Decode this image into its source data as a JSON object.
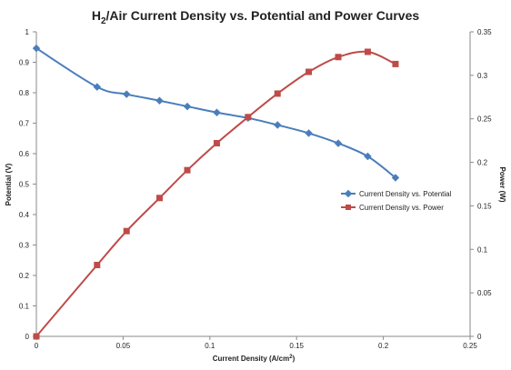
{
  "chart_data": {
    "type": "line",
    "title": {
      "prefix": "H",
      "subscript": "2",
      "rest": "/Air Current Density vs. Potential and Power Curves"
    },
    "xlabel": {
      "main": "Current Density (A/cm",
      "superscript": "2",
      "end": ")"
    },
    "ylabel_left": "Potential (V)",
    "ylabel_right": "Power (W)",
    "xlim": [
      0,
      0.25
    ],
    "ylim_left": [
      0,
      1
    ],
    "ylim_right": [
      0,
      0.35
    ],
    "x_ticks": [
      "0",
      "0.05",
      "0.1",
      "0.15",
      "0.2",
      "0.25"
    ],
    "y_left_ticks": [
      "0",
      "0.1",
      "0.2",
      "0.3",
      "0.4",
      "0.5",
      "0.6",
      "0.7",
      "0.8",
      "0.9",
      "1"
    ],
    "y_right_ticks": [
      "0",
      "0.05",
      "0.1",
      "0.15",
      "0.2",
      "0.25",
      "0.3",
      "0.35"
    ],
    "grid": false,
    "legend_position": "right",
    "series": [
      {
        "name": "Current Density vs. Potential",
        "axis": "left",
        "color": "#4a7ebb",
        "marker": "diamond",
        "x": [
          0,
          0.035,
          0.052,
          0.071,
          0.087,
          0.104,
          0.122,
          0.139,
          0.157,
          0.174,
          0.191,
          0.207
        ],
        "y": [
          0.946,
          0.819,
          0.795,
          0.774,
          0.755,
          0.735,
          0.717,
          0.694,
          0.667,
          0.634,
          0.591,
          0.521
        ]
      },
      {
        "name": "Current Density vs. Power",
        "axis": "right",
        "color": "#be4b48",
        "marker": "square",
        "x": [
          0,
          0.035,
          0.052,
          0.071,
          0.087,
          0.104,
          0.122,
          0.139,
          0.157,
          0.174,
          0.191,
          0.207
        ],
        "y": [
          0,
          0.082,
          0.121,
          0.159,
          0.191,
          0.222,
          0.252,
          0.279,
          0.304,
          0.321,
          0.327,
          0.313
        ]
      }
    ]
  }
}
